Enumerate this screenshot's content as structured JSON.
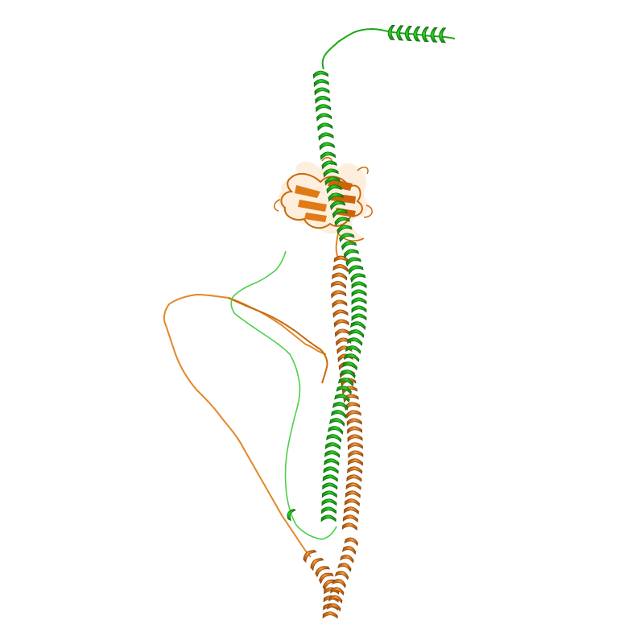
{
  "image": {
    "subject": "protein-structure-cartoon",
    "background": "#ffffff",
    "chains": [
      {
        "id": "chain-a",
        "color": "#22c01e",
        "shade": "#0f8a0c",
        "light": "#5fdc5a"
      },
      {
        "id": "chain-b",
        "color": "#f08a24",
        "shade": "#b85a08",
        "light": "#f6b070"
      }
    ]
  }
}
